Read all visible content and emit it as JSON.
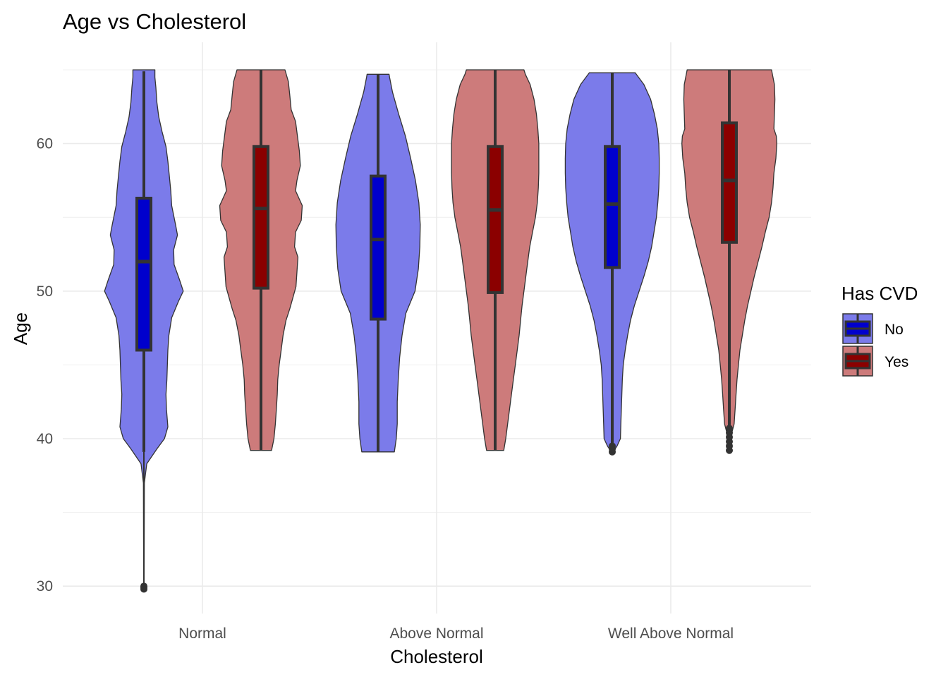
{
  "chart_data": {
    "type": "violin",
    "title": "Age vs Cholesterol",
    "xlabel": "Cholesterol",
    "ylabel": "Age",
    "categories": [
      "Normal",
      "Above Normal",
      "Well Above Normal"
    ],
    "ylim": [
      28,
      66
    ],
    "yticks": [
      30,
      40,
      50,
      60
    ],
    "grid": true,
    "legend": {
      "title": "Has CVD",
      "position": "right"
    },
    "colors": {
      "No_fill": "#7b7bea",
      "No_box": "#0000cd",
      "Yes_fill": "#cd7b7b",
      "Yes_box": "#8b0000",
      "outline": "#333333",
      "grid": "#ebebeb"
    },
    "series": [
      {
        "name": "No",
        "groups": [
          {
            "category": "Normal",
            "min": 39.1,
            "q1": 46.0,
            "median": 52.0,
            "q3": 56.3,
            "max": 64.9,
            "outliers": [
              29.8,
              29.9,
              30.0
            ],
            "density": [
              [
                29.8,
                0.005
              ],
              [
                37,
                0.01
              ],
              [
                38.3,
                0.06
              ],
              [
                39.3,
                0.27
              ],
              [
                40,
                0.43
              ],
              [
                40.8,
                0.5
              ],
              [
                42,
                0.47
              ],
              [
                43,
                0.46
              ],
              [
                44,
                0.48
              ],
              [
                45,
                0.49
              ],
              [
                46,
                0.5
              ],
              [
                47,
                0.52
              ],
              [
                48.2,
                0.58
              ],
              [
                49.3,
                0.72
              ],
              [
                50,
                0.82
              ],
              [
                50.8,
                0.74
              ],
              [
                51.8,
                0.63
              ],
              [
                52.8,
                0.62
              ],
              [
                53.8,
                0.7
              ],
              [
                54.5,
                0.66
              ],
              [
                55.8,
                0.58
              ],
              [
                56.8,
                0.56
              ],
              [
                57.5,
                0.54
              ],
              [
                58.8,
                0.5
              ],
              [
                59.8,
                0.46
              ],
              [
                60.8,
                0.38
              ],
              [
                61.8,
                0.31
              ],
              [
                62.8,
                0.27
              ],
              [
                63.8,
                0.25
              ],
              [
                64.5,
                0.23
              ],
              [
                65,
                0.23
              ]
            ]
          },
          {
            "category": "Above Normal",
            "min": 39.1,
            "q1": 48.1,
            "median": 53.5,
            "q3": 57.8,
            "max": 64.7,
            "outliers": [],
            "density": [
              [
                39.1,
                0.34
              ],
              [
                40,
                0.38
              ],
              [
                41,
                0.4
              ],
              [
                42.5,
                0.4
              ],
              [
                44,
                0.42
              ],
              [
                45.5,
                0.45
              ],
              [
                47,
                0.5
              ],
              [
                48.5,
                0.58
              ],
              [
                50,
                0.77
              ],
              [
                51.5,
                0.84
              ],
              [
                53,
                0.87
              ],
              [
                54.5,
                0.88
              ],
              [
                56,
                0.85
              ],
              [
                57.5,
                0.78
              ],
              [
                59,
                0.68
              ],
              [
                60.5,
                0.57
              ],
              [
                62,
                0.43
              ],
              [
                63.5,
                0.3
              ],
              [
                64.5,
                0.24
              ],
              [
                64.7,
                0.23
              ]
            ]
          },
          {
            "category": "Well Above Normal",
            "min": 39.1,
            "q1": 51.6,
            "median": 55.9,
            "q3": 59.8,
            "max": 64.8,
            "outliers": [
              39.1,
              39.3,
              39.5
            ],
            "density": [
              [
                39.1,
                0.02
              ],
              [
                39.5,
                0.1
              ],
              [
                40,
                0.17
              ],
              [
                41,
                0.18
              ],
              [
                42,
                0.19
              ],
              [
                43,
                0.2
              ],
              [
                44,
                0.21
              ],
              [
                45,
                0.23
              ],
              [
                46,
                0.27
              ],
              [
                47,
                0.32
              ],
              [
                48,
                0.38
              ],
              [
                49,
                0.46
              ],
              [
                50,
                0.56
              ],
              [
                51,
                0.66
              ],
              [
                52,
                0.75
              ],
              [
                53,
                0.82
              ],
              [
                54,
                0.87
              ],
              [
                55,
                0.92
              ],
              [
                56,
                0.95
              ],
              [
                57,
                0.97
              ],
              [
                58,
                0.98
              ],
              [
                59,
                0.98
              ],
              [
                60,
                0.97
              ],
              [
                61,
                0.94
              ],
              [
                62,
                0.88
              ],
              [
                63,
                0.8
              ],
              [
                64,
                0.66
              ],
              [
                64.8,
                0.48
              ]
            ]
          }
        ]
      },
      {
        "name": "Yes",
        "groups": [
          {
            "category": "Normal",
            "min": 39.2,
            "q1": 50.2,
            "median": 55.6,
            "q3": 59.8,
            "max": 65.0,
            "outliers": [],
            "density": [
              [
                39.2,
                0.22
              ],
              [
                40,
                0.27
              ],
              [
                41,
                0.3
              ],
              [
                42,
                0.32
              ],
              [
                43,
                0.34
              ],
              [
                44,
                0.35
              ],
              [
                45,
                0.38
              ],
              [
                46,
                0.42
              ],
              [
                47,
                0.46
              ],
              [
                48,
                0.52
              ],
              [
                48.8,
                0.6
              ],
              [
                49.5,
                0.66
              ],
              [
                50.3,
                0.73
              ],
              [
                51.3,
                0.75
              ],
              [
                52.3,
                0.77
              ],
              [
                53,
                0.7
              ],
              [
                54,
                0.72
              ],
              [
                54.8,
                0.84
              ],
              [
                55.8,
                0.86
              ],
              [
                56.8,
                0.72
              ],
              [
                57.5,
                0.75
              ],
              [
                58.5,
                0.82
              ],
              [
                59.5,
                0.8
              ],
              [
                60.5,
                0.76
              ],
              [
                61.5,
                0.72
              ],
              [
                62.3,
                0.63
              ],
              [
                63.3,
                0.6
              ],
              [
                64.2,
                0.57
              ],
              [
                65,
                0.5
              ]
            ]
          },
          {
            "category": "Above Normal",
            "min": 39.2,
            "q1": 49.9,
            "median": 55.5,
            "q3": 59.8,
            "max": 65.0,
            "outliers": [],
            "density": [
              [
                39.2,
                0.18
              ],
              [
                40,
                0.22
              ],
              [
                41,
                0.26
              ],
              [
                42,
                0.3
              ],
              [
                43,
                0.34
              ],
              [
                44,
                0.38
              ],
              [
                45,
                0.42
              ],
              [
                46,
                0.46
              ],
              [
                47,
                0.5
              ],
              [
                48,
                0.53
              ],
              [
                49,
                0.56
              ],
              [
                50,
                0.6
              ],
              [
                51,
                0.64
              ],
              [
                52,
                0.68
              ],
              [
                53,
                0.72
              ],
              [
                54,
                0.78
              ],
              [
                55,
                0.84
              ],
              [
                56,
                0.88
              ],
              [
                57,
                0.9
              ],
              [
                58,
                0.91
              ],
              [
                59,
                0.91
              ],
              [
                60,
                0.91
              ],
              [
                61,
                0.89
              ],
              [
                62,
                0.86
              ],
              [
                63,
                0.81
              ],
              [
                64,
                0.73
              ],
              [
                64.7,
                0.63
              ],
              [
                65,
                0.6
              ]
            ]
          },
          {
            "category": "Well Above Normal",
            "min": 39.2,
            "q1": 53.3,
            "median": 57.5,
            "q3": 61.4,
            "max": 65.0,
            "outliers": [
              39.2,
              39.5,
              39.8,
              40.1,
              40.4,
              40.7
            ],
            "density": [
              [
                39.2,
                0.02
              ],
              [
                40.5,
                0.06
              ],
              [
                41,
                0.1
              ],
              [
                42,
                0.12
              ],
              [
                43,
                0.14
              ],
              [
                44,
                0.16
              ],
              [
                45,
                0.19
              ],
              [
                46,
                0.22
              ],
              [
                47,
                0.27
              ],
              [
                48,
                0.32
              ],
              [
                49,
                0.38
              ],
              [
                50,
                0.45
              ],
              [
                51,
                0.52
              ],
              [
                52,
                0.6
              ],
              [
                53,
                0.68
              ],
              [
                54,
                0.75
              ],
              [
                55,
                0.83
              ],
              [
                56,
                0.88
              ],
              [
                57,
                0.91
              ],
              [
                58,
                0.93
              ],
              [
                59,
                0.97
              ],
              [
                60,
                0.99
              ],
              [
                60.5,
                0.98
              ],
              [
                61,
                0.93
              ],
              [
                62,
                0.94
              ],
              [
                63,
                0.95
              ],
              [
                64,
                0.94
              ],
              [
                65,
                0.88
              ]
            ]
          }
        ]
      }
    ]
  }
}
